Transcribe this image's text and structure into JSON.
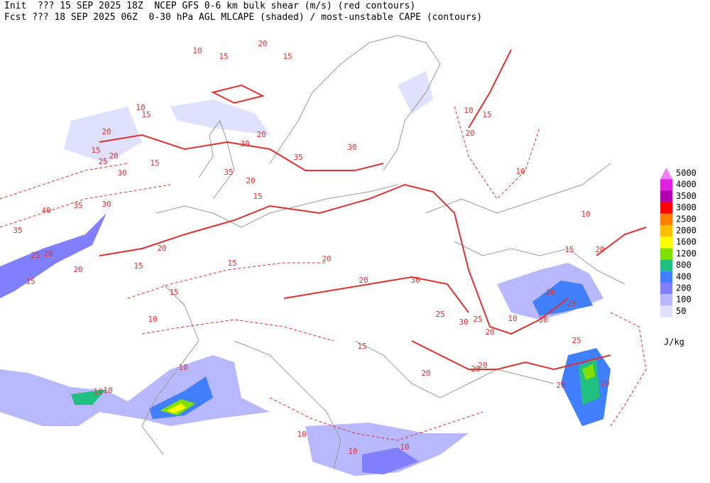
{
  "header": {
    "line1": "Init  ??? 15 SEP 2025 18Z  NCEP GFS 0-6 km bulk shear (m/s) (red contours)",
    "line2": "Fcst ??? 18 SEP 2025 06Z  0-30 hPa AGL MLCAPE (shaded) / most-unstable CAPE (contours)"
  },
  "legend": {
    "unit": "J/kg",
    "levels": [
      {
        "value": 5000,
        "color": "#f080f0"
      },
      {
        "value": 4000,
        "color": "#e020e0"
      },
      {
        "value": 3500,
        "color": "#b000b0"
      },
      {
        "value": 3000,
        "color": "#ff0000"
      },
      {
        "value": 2500,
        "color": "#ff8000"
      },
      {
        "value": 2000,
        "color": "#ffc000"
      },
      {
        "value": 1600,
        "color": "#ffff00"
      },
      {
        "value": 1200,
        "color": "#80e000"
      },
      {
        "value": 800,
        "color": "#20c080"
      },
      {
        "value": 400,
        "color": "#4080ff"
      },
      {
        "value": 200,
        "color": "#8080ff"
      },
      {
        "value": 100,
        "color": "#b8b8ff"
      },
      {
        "value": 50,
        "color": "#e0e0ff"
      }
    ]
  },
  "contour_labels": [
    10,
    15,
    20,
    15,
    10,
    15,
    20,
    15,
    20,
    25,
    30,
    15,
    30,
    35,
    20,
    35,
    30,
    20,
    15,
    40,
    35,
    30,
    35,
    25,
    20,
    20,
    15,
    20,
    15,
    15,
    20,
    20,
    30,
    25,
    25,
    30,
    20,
    10,
    10,
    25,
    30,
    25,
    10,
    15,
    20,
    10,
    10,
    15,
    20,
    15,
    20,
    20,
    20,
    10,
    10,
    10,
    10,
    15,
    10,
    10,
    10,
    10,
    20
  ]
}
